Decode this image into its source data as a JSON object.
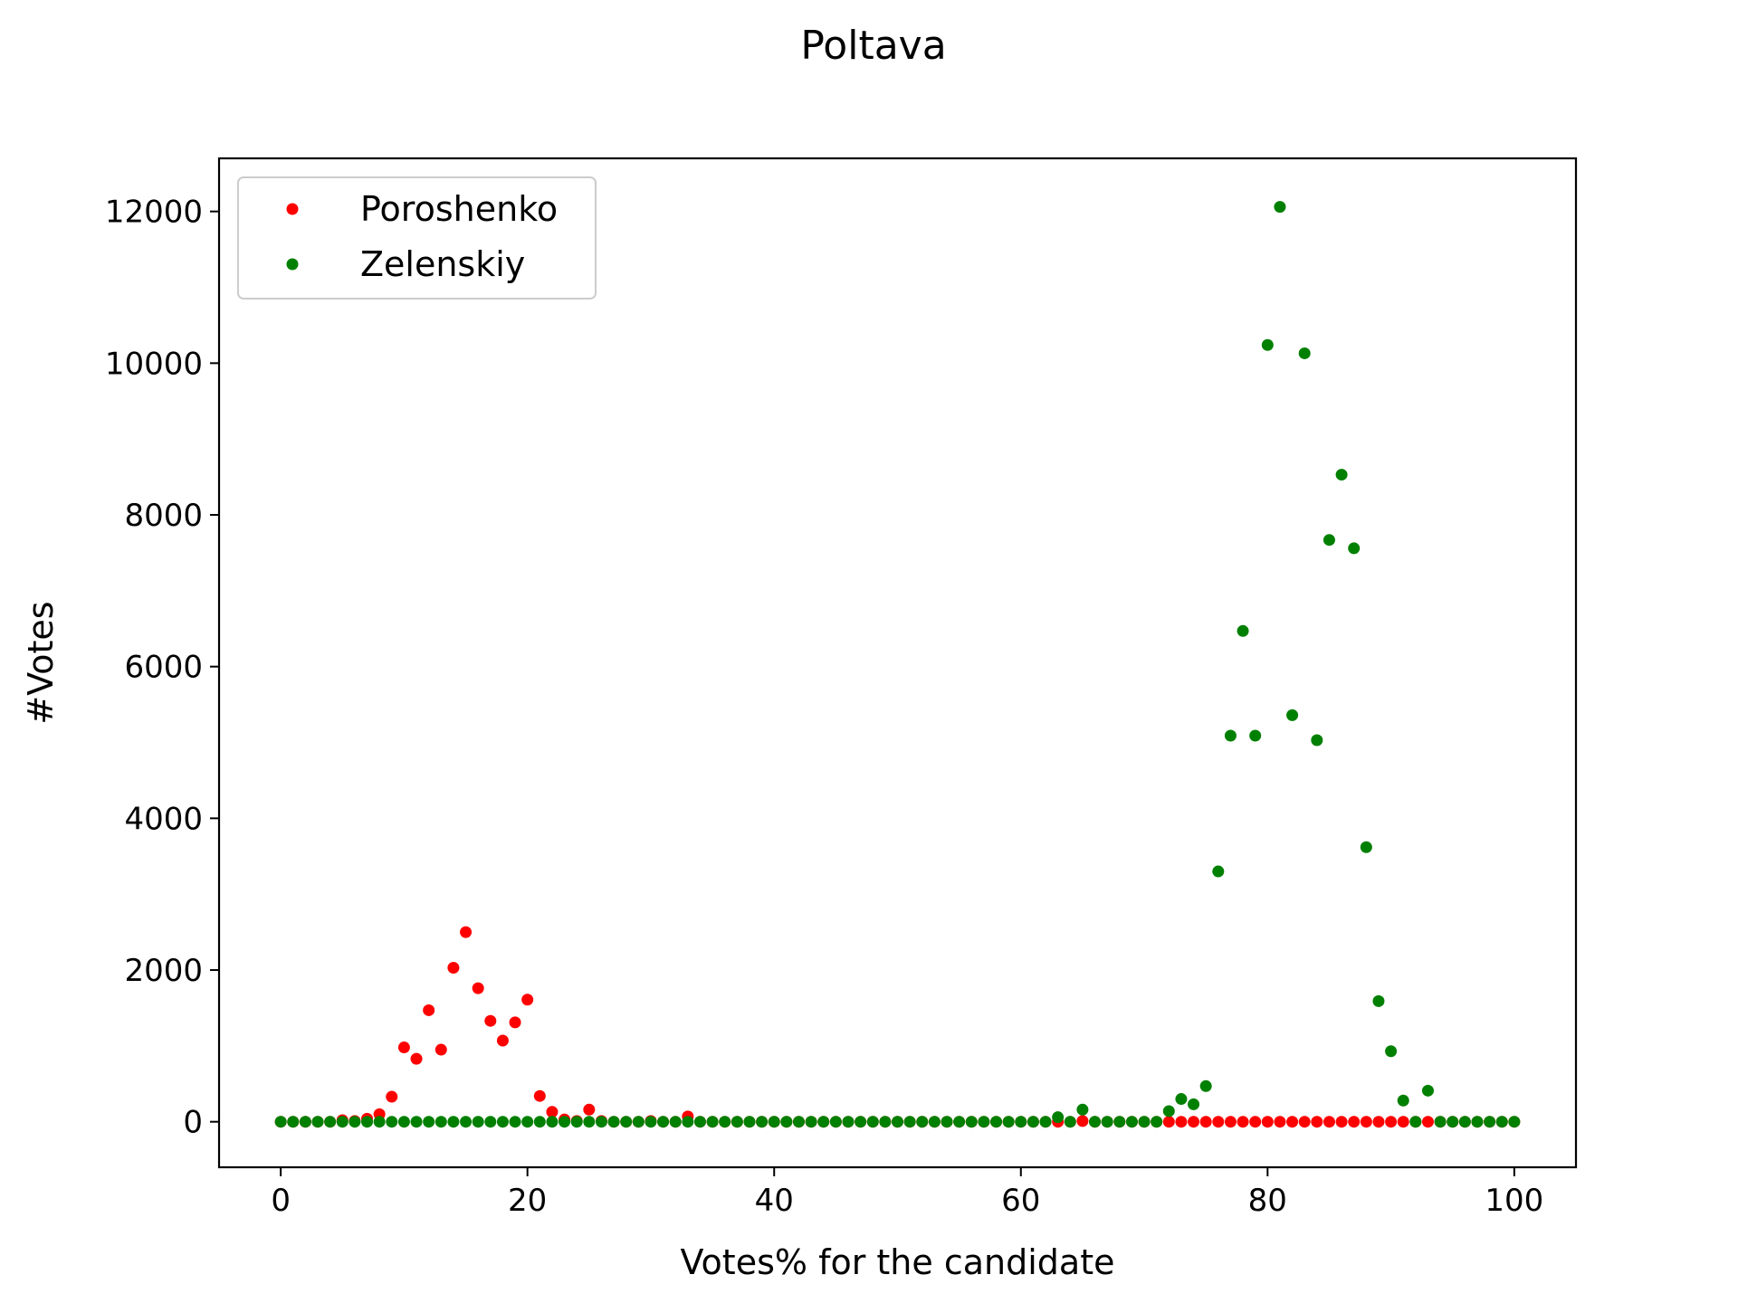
{
  "chart_data": {
    "type": "scatter",
    "title": "Poltava",
    "xlabel": "Votes% for the candidate",
    "ylabel": "#Votes",
    "xlim": [
      -5,
      105
    ],
    "ylim": [
      -600,
      12700
    ],
    "xticks": [
      0,
      20,
      40,
      60,
      80,
      100
    ],
    "yticks": [
      0,
      2000,
      4000,
      6000,
      8000,
      10000,
      12000
    ],
    "grid": false,
    "legend_position": "top-left",
    "x": [
      0,
      1,
      2,
      3,
      4,
      5,
      6,
      7,
      8,
      9,
      10,
      11,
      12,
      13,
      14,
      15,
      16,
      17,
      18,
      19,
      20,
      21,
      22,
      23,
      24,
      25,
      26,
      27,
      28,
      29,
      30,
      31,
      32,
      33,
      34,
      35,
      36,
      37,
      38,
      39,
      40,
      41,
      42,
      43,
      44,
      45,
      46,
      47,
      48,
      49,
      50,
      51,
      52,
      53,
      54,
      55,
      56,
      57,
      58,
      59,
      60,
      61,
      62,
      63,
      64,
      65,
      66,
      67,
      68,
      69,
      70,
      71,
      72,
      73,
      74,
      75,
      76,
      77,
      78,
      79,
      80,
      81,
      82,
      83,
      84,
      85,
      86,
      87,
      88,
      89,
      90,
      91,
      92,
      93,
      94,
      95,
      96,
      97,
      98,
      99,
      100
    ],
    "series": [
      {
        "name": "Poroshenko",
        "color": "#ff0000",
        "values": [
          0,
          0,
          0,
          0,
          0,
          20,
          10,
          40,
          100,
          330,
          980,
          830,
          1470,
          950,
          2030,
          2500,
          1760,
          1330,
          1070,
          1310,
          1610,
          340,
          130,
          30,
          10,
          160,
          10,
          0,
          0,
          0,
          10,
          0,
          0,
          70,
          0,
          0,
          0,
          0,
          0,
          0,
          0,
          0,
          0,
          0,
          0,
          0,
          0,
          0,
          0,
          0,
          0,
          0,
          0,
          0,
          0,
          0,
          0,
          0,
          0,
          0,
          0,
          0,
          0,
          0,
          0,
          10,
          0,
          0,
          0,
          0,
          0,
          0,
          0,
          0,
          0,
          0,
          0,
          0,
          0,
          0,
          0,
          0,
          0,
          0,
          0,
          0,
          0,
          0,
          0,
          0,
          0,
          0,
          0,
          0,
          0,
          0,
          0,
          0,
          0,
          0,
          0
        ]
      },
      {
        "name": "Zelenskiy",
        "color": "#008000",
        "values": [
          0,
          0,
          0,
          0,
          0,
          0,
          0,
          0,
          0,
          0,
          0,
          0,
          0,
          0,
          0,
          0,
          0,
          0,
          0,
          0,
          0,
          0,
          0,
          0,
          0,
          0,
          0,
          0,
          0,
          0,
          0,
          0,
          0,
          0,
          0,
          0,
          0,
          0,
          0,
          0,
          0,
          0,
          0,
          0,
          0,
          0,
          0,
          0,
          0,
          0,
          0,
          0,
          0,
          0,
          0,
          0,
          0,
          0,
          0,
          0,
          0,
          0,
          0,
          60,
          0,
          160,
          0,
          0,
          0,
          0,
          0,
          0,
          140,
          300,
          230,
          470,
          3300,
          5090,
          6470,
          5090,
          10240,
          12060,
          5360,
          10130,
          5030,
          7670,
          8530,
          7560,
          3620,
          1590,
          930,
          280,
          0,
          410,
          0,
          0,
          0,
          0,
          0,
          0,
          0
        ]
      }
    ]
  }
}
